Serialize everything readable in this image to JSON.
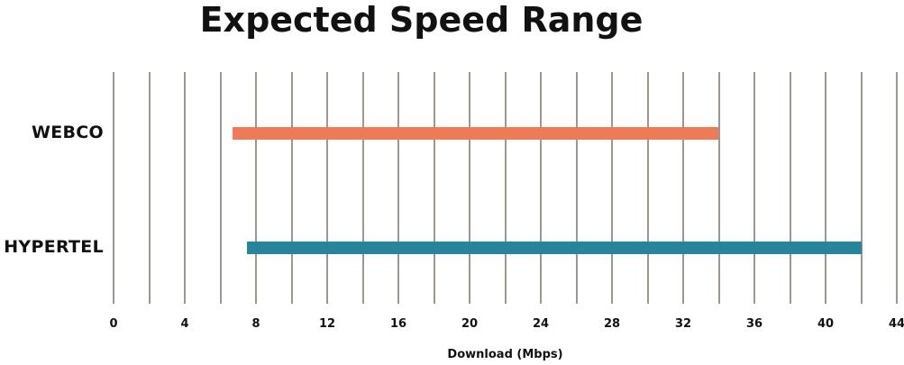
{
  "title": "Expected Speed Range",
  "chart_data": {
    "type": "bar",
    "subtype": "horizontal-range-bars",
    "title": "Expected Speed Range",
    "xlabel": "Download (Mbps)",
    "xlim": [
      0,
      44
    ],
    "gridline_step": 2,
    "tick_label_step": 4,
    "tick_labels": [
      "0",
      "4",
      "8",
      "12",
      "16",
      "20",
      "24",
      "28",
      "32",
      "36",
      "40",
      "44"
    ],
    "grid": "vertical-only",
    "legend": "none",
    "categories": [
      "WEBCO",
      "HYPERTEL"
    ],
    "series": [
      {
        "name": "WEBCO",
        "range_mbps": [
          6.7,
          34
        ],
        "color": "#EE7B55"
      },
      {
        "name": "HYPERTEL",
        "range_mbps": [
          7.5,
          42
        ],
        "color": "#27849A"
      }
    ],
    "colors": {
      "gridline": "#9D978F",
      "text": "#111111",
      "background": "#FFFFFF"
    }
  }
}
